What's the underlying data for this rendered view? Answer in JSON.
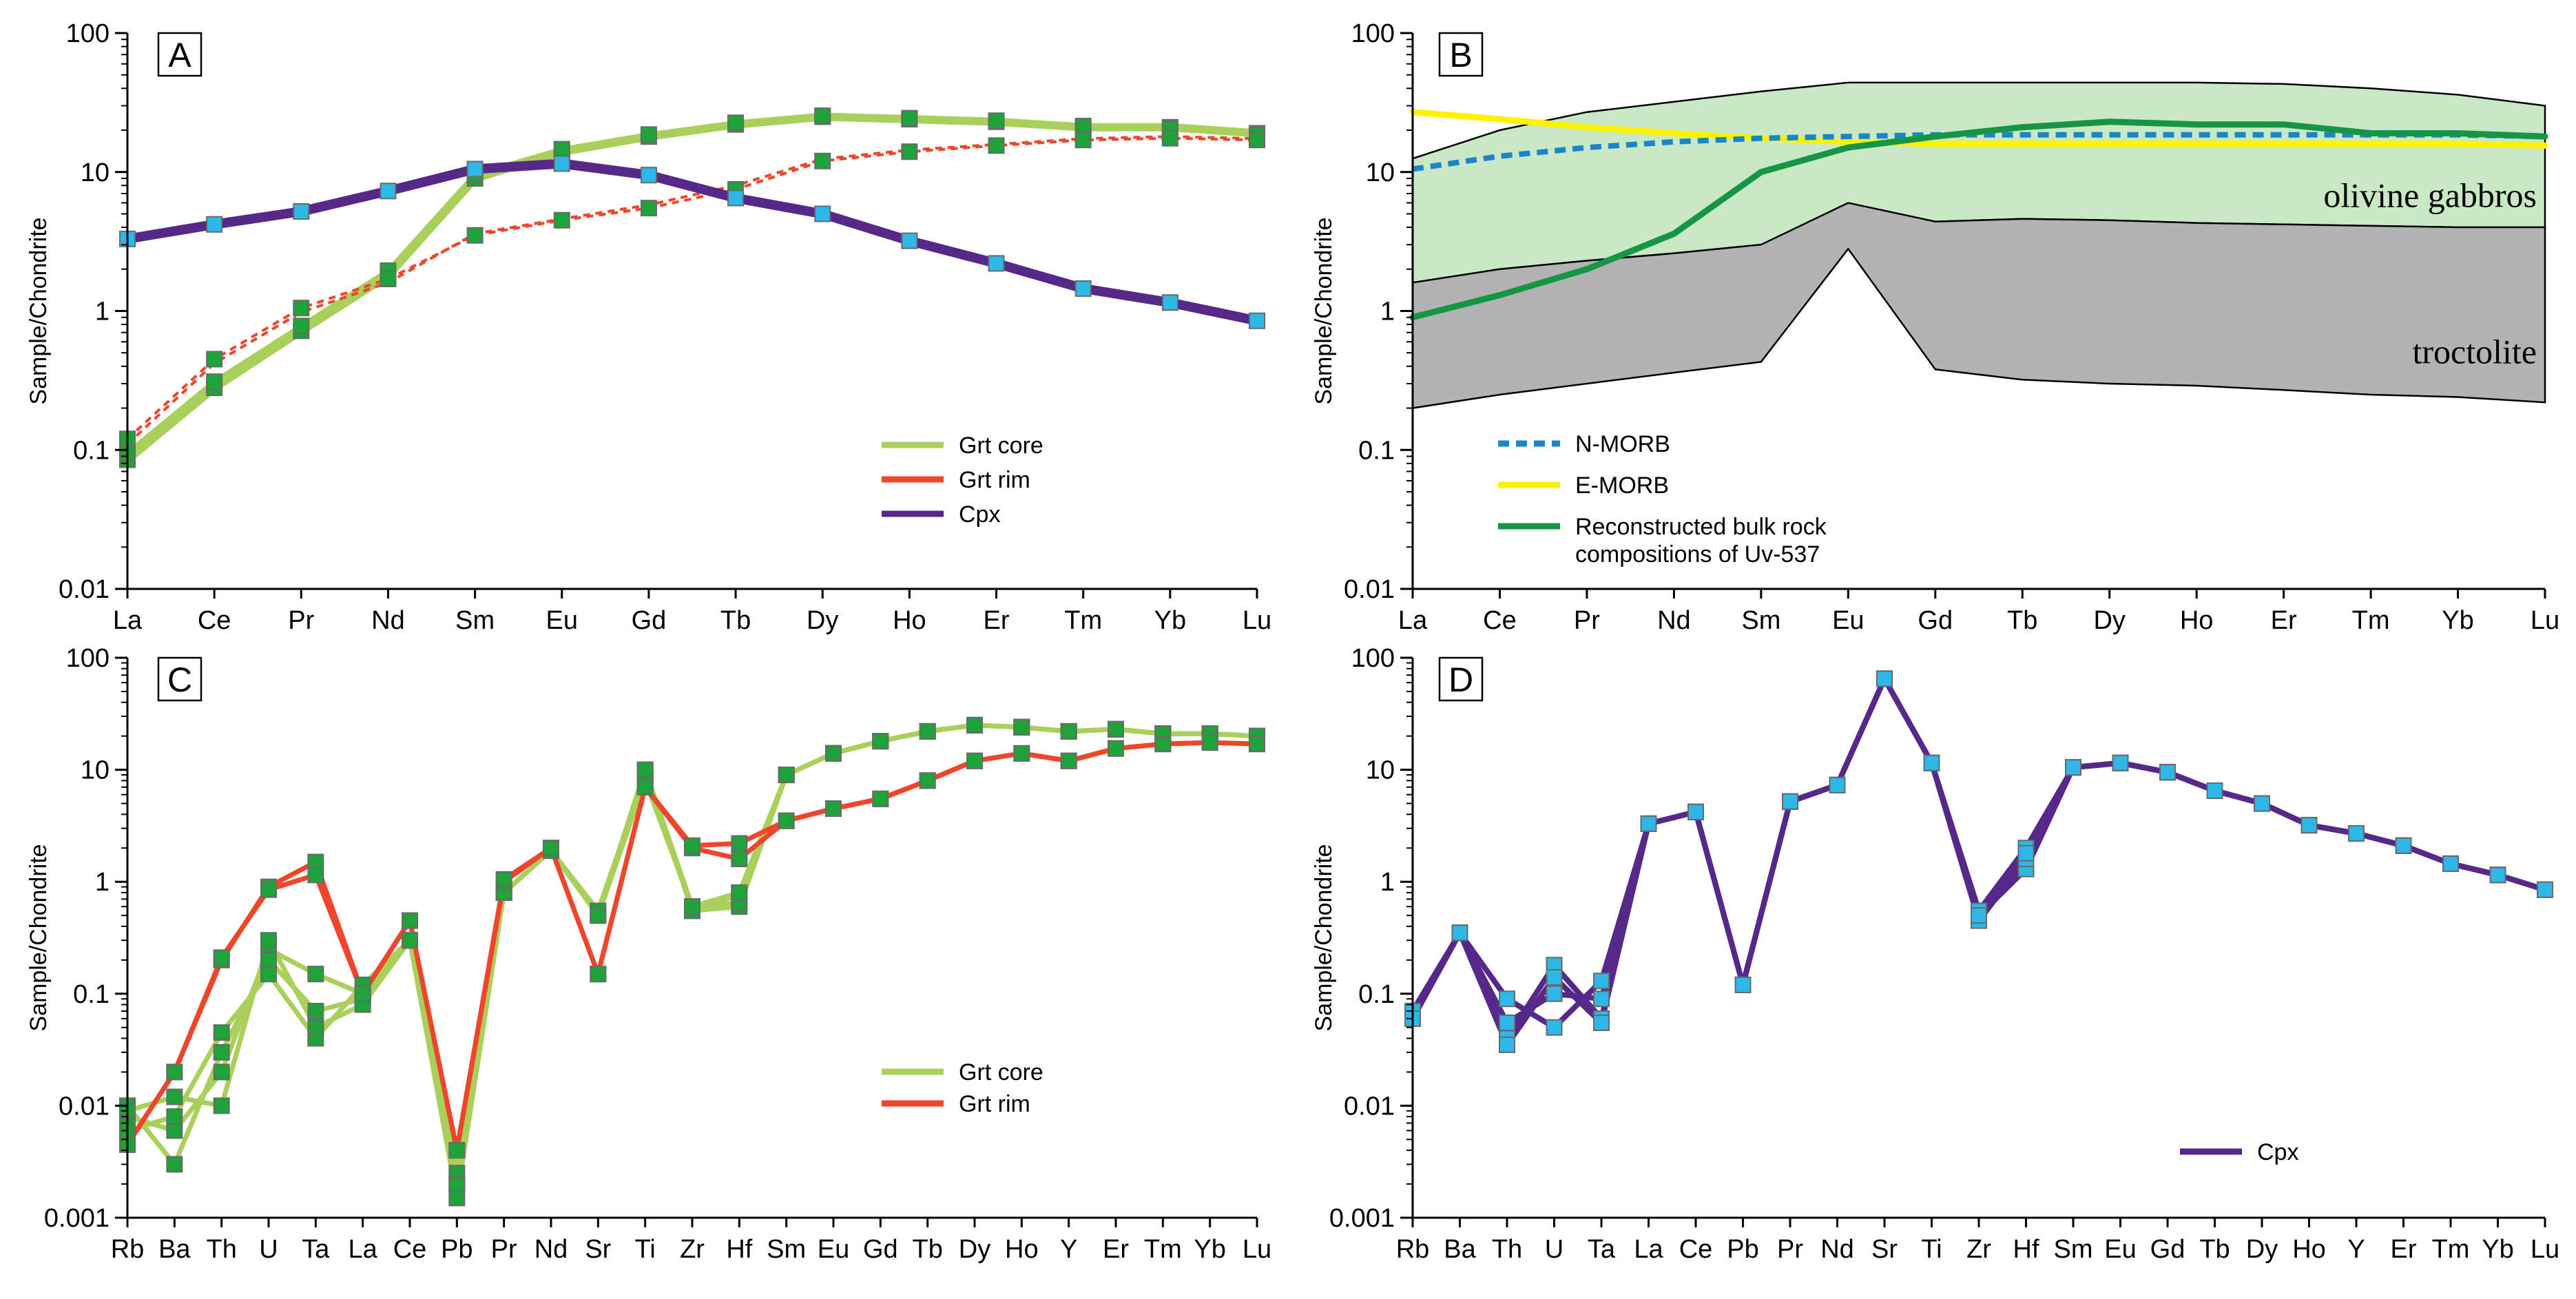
{
  "chart_data": [
    {
      "id": "A",
      "type": "line",
      "panel_label": "A",
      "ylabel": "Sample/Chondrite",
      "yscale": "log",
      "ylim": [
        0.01,
        100
      ],
      "yticks": [
        {
          "value": 0.01,
          "label": "0.01"
        },
        {
          "value": 0.1,
          "label": "0.1"
        },
        {
          "value": 1,
          "label": "1"
        },
        {
          "value": 10,
          "label": "10"
        },
        {
          "value": 100,
          "label": "100"
        }
      ],
      "categories": [
        "La",
        "Ce",
        "Pr",
        "Nd",
        "Sm",
        "Eu",
        "Gd",
        "Tb",
        "Dy",
        "Ho",
        "Er",
        "Tm",
        "Yb",
        "Lu"
      ],
      "legend": [
        {
          "name": "Grt core",
          "color": "#a8d05a",
          "dash": false
        },
        {
          "name": "Grt rim",
          "color": "#f0452a",
          "dash": false
        },
        {
          "name": "Cpx",
          "color": "#55288a",
          "dash": false
        }
      ],
      "series": [
        {
          "name": "Grt core",
          "color": "#a8d05a",
          "width": 12,
          "marker": "#1fa23a",
          "values": [
            0.085,
            0.28,
            0.72,
            1.8,
            9,
            14,
            18,
            22,
            25,
            24,
            23,
            21,
            21,
            19
          ]
        },
        {
          "name": "Grt core",
          "color": "#a8d05a",
          "width": 7,
          "marker": "#1fa23a",
          "values": [
            0.095,
            0.31,
            0.78,
            1.95,
            9.6,
            14.6,
            18.6,
            22.6,
            25.4,
            24.4,
            23.4,
            21.4,
            20.5,
            18.5
          ]
        },
        {
          "name": "Grt rim",
          "color": "#f0452a",
          "width": 4,
          "dash": "10 8",
          "marker": "#1fa23a",
          "values": [
            0.12,
            0.45,
            1.05,
            1.7,
            3.5,
            4.5,
            5.5,
            7.5,
            12,
            14,
            15.5,
            17,
            17.5,
            17
          ]
        },
        {
          "name": "Grt rim",
          "color": "#f0452a",
          "width": 4,
          "dash": "10 8",
          "marker": null,
          "values": [
            0.11,
            0.42,
            0.98,
            1.6,
            3.6,
            4.6,
            5.8,
            8,
            12.4,
            14.4,
            15.8,
            17.4,
            18,
            17.4
          ]
        },
        {
          "name": "Cpx",
          "color": "#55288a",
          "width": 14,
          "marker": "#2cb8e8",
          "values": [
            3.3,
            4.2,
            5.2,
            7.3,
            10.5,
            11.5,
            9.5,
            6.5,
            5,
            3.2,
            2.2,
            1.45,
            1.15,
            0.85
          ]
        }
      ]
    },
    {
      "id": "B",
      "type": "area",
      "panel_label": "B",
      "ylabel": "Sample/Chondrite",
      "yscale": "log",
      "ylim": [
        0.01,
        100
      ],
      "yticks": [
        {
          "value": 0.01,
          "label": "0.01"
        },
        {
          "value": 0.1,
          "label": "0.1"
        },
        {
          "value": 1,
          "label": "1"
        },
        {
          "value": 10,
          "label": "10"
        },
        {
          "value": 100,
          "label": "100"
        }
      ],
      "categories": [
        "La",
        "Ce",
        "Pr",
        "Nd",
        "Sm",
        "Eu",
        "Gd",
        "Tb",
        "Dy",
        "Ho",
        "Er",
        "Tm",
        "Yb",
        "Lu"
      ],
      "fields": [
        {
          "name": "olivine gabbros",
          "color": "#c9e8c6",
          "upper": [
            12.5,
            20,
            27,
            32,
            38,
            44,
            44,
            44,
            44,
            44,
            43,
            40,
            36,
            30
          ],
          "lower": [
            1.6,
            2.0,
            2.3,
            2.6,
            3.0,
            3.7,
            4.4,
            4.6,
            4.5,
            4.3,
            4.2,
            4.1,
            4.0,
            4.0
          ]
        },
        {
          "name": "troctolite",
          "color": "#b3b3b3",
          "upper": [
            1.6,
            2.0,
            2.3,
            2.6,
            3.0,
            6.0,
            4.4,
            4.6,
            4.5,
            4.3,
            4.2,
            4.1,
            4.0,
            4.0
          ],
          "lower": [
            0.2,
            0.25,
            0.3,
            0.36,
            0.43,
            2.8,
            0.38,
            0.32,
            0.3,
            0.29,
            0.27,
            0.25,
            0.24,
            0.22
          ]
        }
      ],
      "legend": [
        {
          "name": "N-MORB",
          "color": "#1a86c8",
          "dash": true
        },
        {
          "name": "E-MORB",
          "color": "#fff200",
          "dash": false
        },
        {
          "name": "Reconstructed bulk rock",
          "name2": "compositions of Uv-537",
          "color": "#169645",
          "dash": false
        }
      ],
      "series": [
        {
          "name": "E-MORB",
          "color": "#fff200",
          "width": 9,
          "marker": null,
          "values": [
            27,
            24,
            21,
            19,
            17.5,
            16.5,
            16,
            16,
            16,
            16,
            16,
            16,
            16,
            15.5
          ]
        },
        {
          "name": "N-MORB",
          "color": "#1a86c8",
          "width": 8,
          "dash": "16 10",
          "marker": null,
          "values": [
            10.5,
            13,
            15,
            16.5,
            17.5,
            18,
            18.5,
            18.5,
            18.5,
            18.5,
            18.5,
            18.5,
            18.5,
            18
          ]
        },
        {
          "name": "Reconstructed bulk rock compositions of Uv-537",
          "color": "#169645",
          "width": 9,
          "marker": null,
          "values": [
            0.9,
            1.3,
            2,
            3.6,
            10,
            15,
            18,
            21,
            23,
            22,
            22,
            19,
            19,
            18
          ]
        }
      ],
      "annotations": [
        "olivine gabbros",
        "troctolite"
      ]
    },
    {
      "id": "C",
      "type": "line",
      "panel_label": "C",
      "ylabel": "Sample/Chondrite",
      "yscale": "log",
      "ylim": [
        0.001,
        100
      ],
      "yticks": [
        {
          "value": 0.001,
          "label": "0.001"
        },
        {
          "value": 0.01,
          "label": "0.01"
        },
        {
          "value": 0.1,
          "label": "0.1"
        },
        {
          "value": 1,
          "label": "1"
        },
        {
          "value": 10,
          "label": "10"
        },
        {
          "value": 100,
          "label": "100"
        }
      ],
      "categories": [
        "Rb",
        "Ba",
        "Th",
        "U",
        "Ta",
        "La",
        "Ce",
        "Pb",
        "Pr",
        "Nd",
        "Sr",
        "Ti",
        "Zr",
        "Hf",
        "Sm",
        "Eu",
        "Gd",
        "Tb",
        "Dy",
        "Ho",
        "Y",
        "Er",
        "Tm",
        "Yb",
        "Lu"
      ],
      "legend": [
        {
          "name": "Grt core",
          "color": "#a8d05a",
          "dash": false
        },
        {
          "name": "Grt rim",
          "color": "#f0452a",
          "dash": false
        }
      ],
      "series": [
        {
          "name": "Grt core",
          "color": "#a8d05a",
          "width": 7,
          "marker": "#1fa23a",
          "values": [
            0.008,
            0.006,
            0.02,
            0.25,
            0.15,
            0.1,
            0.3,
            0.002,
            0.8,
            1.9,
            0.5,
            10,
            0.55,
            0.6,
            9,
            14,
            18,
            22,
            25,
            24,
            22,
            23,
            21,
            21,
            20
          ]
        },
        {
          "name": "Grt core",
          "color": "#a8d05a",
          "width": 7,
          "marker": "#1fa23a",
          "values": [
            0.01,
            0.003,
            0.03,
            0.2,
            0.07,
            0.09,
            0.3,
            0.0015,
            0.8,
            1.9,
            0.55,
            9,
            0.6,
            0.75,
            9,
            14,
            18,
            22,
            25,
            24,
            22,
            23,
            21,
            21,
            20
          ]
        },
        {
          "name": "Grt core",
          "color": "#a8d05a",
          "width": 7,
          "marker": "#1fa23a",
          "values": [
            0.006,
            0.008,
            0.045,
            0.15,
            0.04,
            0.12,
            0.3,
            0.0025,
            0.8,
            1.9,
            0.5,
            8,
            0.6,
            0.65,
            9,
            14,
            18,
            22,
            25,
            24,
            22,
            23,
            21,
            21,
            20
          ]
        },
        {
          "name": "Grt core",
          "color": "#a8d05a",
          "width": 7,
          "marker": "#1fa23a",
          "values": [
            0.009,
            0.012,
            0.01,
            0.3,
            0.05,
            0.08,
            0.3,
            0.002,
            0.8,
            1.9,
            0.5,
            10,
            0.6,
            0.8,
            9,
            14,
            18,
            22,
            25,
            24,
            22,
            23,
            21,
            21,
            20
          ]
        },
        {
          "name": "Grt rim",
          "color": "#f0452a",
          "width": 7,
          "marker": "#1fa23a",
          "values": [
            0.0045,
            0.02,
            0.2,
            0.9,
            1.5,
            0.1,
            0.45,
            0.004,
            1.0,
            2.0,
            0.15,
            7,
            2.0,
            1.6,
            3.5,
            4.5,
            5.5,
            8,
            12,
            14,
            12,
            15.5,
            17,
            17.5,
            17
          ]
        },
        {
          "name": "Grt rim",
          "color": "#f0452a",
          "width": 7,
          "marker": "#1fa23a",
          "values": [
            0.0045,
            0.02,
            0.21,
            0.85,
            1.15,
            0.1,
            0.45,
            0.004,
            1.05,
            2.0,
            0.15,
            7,
            2.1,
            2.2,
            3.5,
            4.5,
            5.5,
            8,
            12,
            14,
            12,
            15.5,
            17,
            17.5,
            17
          ]
        }
      ]
    },
    {
      "id": "D",
      "type": "line",
      "panel_label": "D",
      "ylabel": "Sample/Chondrite",
      "yscale": "log",
      "ylim": [
        0.001,
        100
      ],
      "yticks": [
        {
          "value": 0.001,
          "label": "0.001"
        },
        {
          "value": 0.01,
          "label": "0.01"
        },
        {
          "value": 0.1,
          "label": "0.1"
        },
        {
          "value": 1,
          "label": "1"
        },
        {
          "value": 10,
          "label": "10"
        },
        {
          "value": 100,
          "label": "100"
        }
      ],
      "categories": [
        "Rb",
        "Ba",
        "Th",
        "U",
        "Ta",
        "La",
        "Ce",
        "Pb",
        "Pr",
        "Nd",
        "Sr",
        "Ti",
        "Zr",
        "Hf",
        "Sm",
        "Eu",
        "Gd",
        "Tb",
        "Dy",
        "Ho",
        "Y",
        "Er",
        "Tm",
        "Yb",
        "Lu"
      ],
      "legend": [
        {
          "name": "Cpx",
          "color": "#55288a",
          "dash": false
        }
      ],
      "series": [
        {
          "name": "Cpx",
          "color": "#55288a",
          "width": 8,
          "marker": "#2cb8e8",
          "values": [
            0.065,
            0.35,
            0.04,
            0.18,
            0.06,
            3.3,
            4.2,
            0.12,
            5.2,
            7.3,
            65,
            11.5,
            0.5,
            1.3,
            10.5,
            11.5,
            9.5,
            6.5,
            5,
            3.2,
            2.7,
            2.1,
            1.45,
            1.15,
            0.85
          ]
        },
        {
          "name": "Cpx",
          "color": "#55288a",
          "width": 8,
          "marker": "#2cb8e8",
          "values": [
            0.06,
            0.35,
            0.09,
            0.05,
            0.13,
            3.3,
            4.2,
            0.12,
            5.2,
            7.3,
            65,
            11.5,
            0.55,
            2.0,
            10.5,
            11.5,
            9.5,
            6.5,
            5,
            3.2,
            2.7,
            2.1,
            1.45,
            1.15,
            0.85
          ]
        },
        {
          "name": "Cpx",
          "color": "#55288a",
          "width": 8,
          "marker": "#2cb8e8",
          "values": [
            0.07,
            0.35,
            0.055,
            0.1,
            0.09,
            3.3,
            4.2,
            0.12,
            5.2,
            7.3,
            65,
            11.5,
            0.45,
            1.6,
            10.5,
            11.5,
            9.5,
            6.5,
            5,
            3.2,
            2.7,
            2.1,
            1.45,
            1.15,
            0.85
          ]
        },
        {
          "name": "Cpx",
          "color": "#55288a",
          "width": 8,
          "marker": "#2cb8e8",
          "values": [
            0.06,
            0.35,
            0.035,
            0.14,
            0.055,
            3.3,
            4.2,
            0.12,
            5.2,
            7.3,
            65,
            11.5,
            0.5,
            1.8,
            10.5,
            11.5,
            9.5,
            6.5,
            5,
            3.2,
            2.7,
            2.1,
            1.45,
            1.15,
            0.85
          ]
        }
      ]
    }
  ]
}
